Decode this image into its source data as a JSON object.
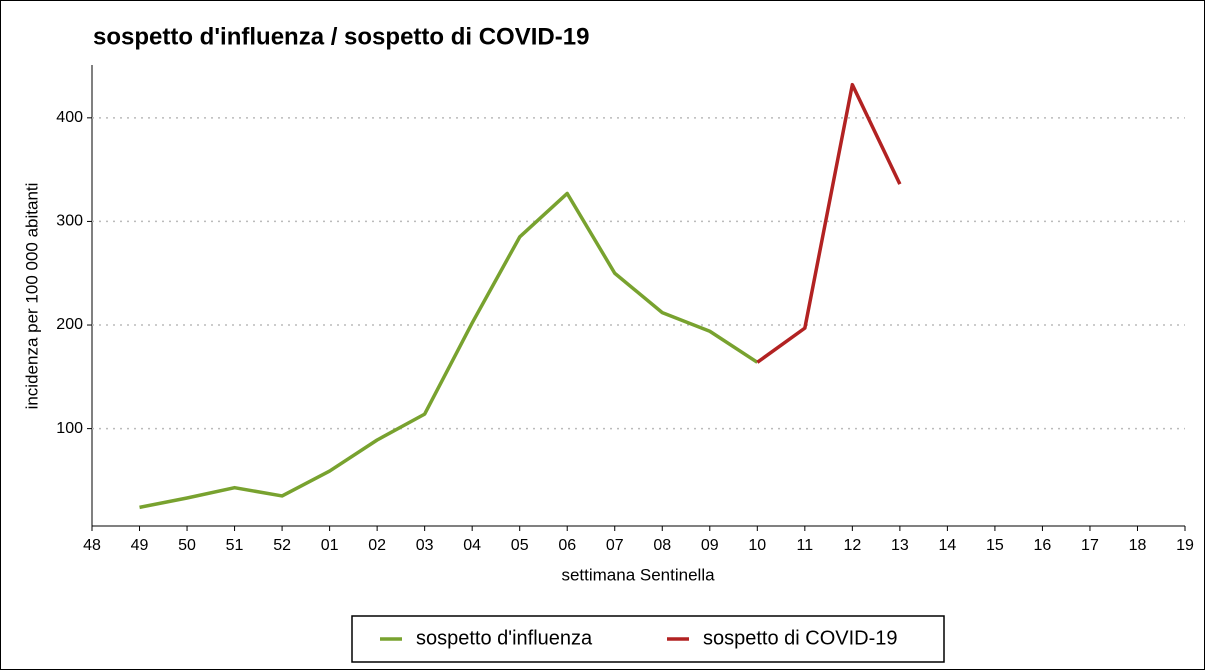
{
  "chart_data": {
    "type": "line",
    "title": "sospetto d'influenza / sospetto di COVID-19",
    "xlabel": "settimana Sentinella",
    "ylabel": "incidenza per 100 000 abitanti",
    "categories": [
      "48",
      "49",
      "50",
      "51",
      "52",
      "01",
      "02",
      "03",
      "04",
      "05",
      "06",
      "07",
      "08",
      "09",
      "10",
      "11",
      "12",
      "13",
      "14",
      "15",
      "16",
      "17",
      "18",
      "19"
    ],
    "series": [
      {
        "name": "sospetto d'influenza",
        "color": "#78a22f",
        "values": [
          null,
          24,
          33,
          43,
          35,
          59,
          89,
          114,
          202,
          285,
          327,
          250,
          212,
          194,
          164,
          null,
          null,
          null,
          null,
          null,
          null,
          null,
          null,
          null
        ]
      },
      {
        "name": "sospetto di COVID-19",
        "color": "#b22222",
        "values": [
          null,
          null,
          null,
          null,
          null,
          null,
          null,
          null,
          null,
          null,
          null,
          null,
          null,
          null,
          164,
          197,
          432,
          336,
          null,
          null,
          null,
          null,
          null,
          null
        ]
      }
    ],
    "ylim": [
      6,
      451
    ],
    "yticks": [
      100,
      200,
      300,
      400
    ],
    "grid": true,
    "legend": "bottom"
  }
}
